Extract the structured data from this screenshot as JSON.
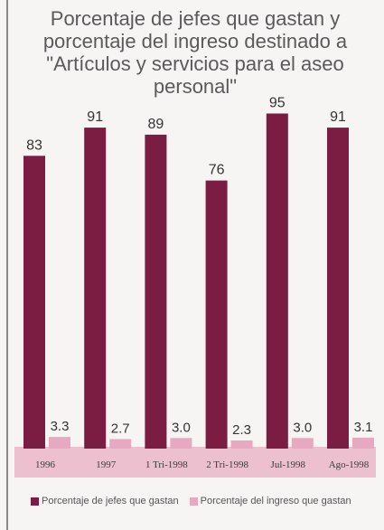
{
  "chart_data": {
    "type": "bar",
    "title": "Porcentaje de jefes que gastan y\nporcentaje del ingreso destinado a\n\"Artículos y servicios para el aseo\npersonal\"",
    "categories": [
      "1996",
      "1997",
      "1 Tri-1998",
      "2 Tri-1998",
      "Jul-1998",
      "Ago-1998"
    ],
    "series": [
      {
        "name": "Porcentaje de jefes que gastan",
        "values": [
          83,
          91,
          89,
          76,
          95,
          91
        ],
        "labels": [
          "83",
          "91",
          "89",
          "76",
          "95",
          "91"
        ],
        "color": "#7b1c43"
      },
      {
        "name": "Porcentaje del ingreso que gastan",
        "values": [
          3.3,
          2.7,
          3.0,
          2.3,
          3.0,
          3.1
        ],
        "labels": [
          "3.3",
          "2.7",
          "3.0",
          "2.3",
          "3.0",
          "3.1"
        ],
        "color": "#e6a9bf"
      }
    ],
    "ylim": [
      0,
      100
    ],
    "grid": false,
    "legend": "bottom"
  }
}
